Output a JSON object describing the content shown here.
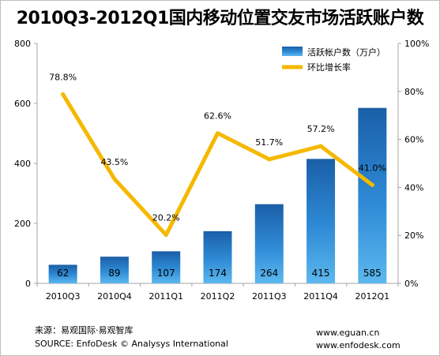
{
  "title": "2010Q3-2012Q1国内移动位置交友市场活跃账户数",
  "chart_data": {
    "type": "bar",
    "categories": [
      "2010Q3",
      "2010Q4",
      "2011Q1",
      "2011Q2",
      "2011Q3",
      "2011Q4",
      "2012Q1"
    ],
    "series": [
      {
        "name": "活跃帐户数（万户）",
        "axis": "left",
        "values": [
          62,
          89,
          107,
          174,
          264,
          415,
          585
        ],
        "data_labels": [
          "62",
          "89",
          "107",
          "174",
          "264",
          "415",
          "585"
        ]
      },
      {
        "name": "环比增长率",
        "type": "line",
        "axis": "right",
        "values": [
          78.8,
          43.5,
          20.2,
          62.6,
          51.7,
          57.2,
          41.0
        ],
        "data_labels": [
          "78.8%",
          "43.5%",
          "20.2%",
          "62.6%",
          "51.7%",
          "57.2%",
          "41.0%"
        ]
      }
    ],
    "y_left": {
      "ylim": [
        0,
        800
      ],
      "ticks": [
        "0",
        "200",
        "400",
        "600",
        "800"
      ]
    },
    "y_right": {
      "ylim": [
        0,
        100
      ],
      "ticks": [
        "0%",
        "20%",
        "40%",
        "60%",
        "80%",
        "100%"
      ]
    },
    "grid": false,
    "legend_position": "top-right",
    "colors": {
      "bar_top": "#1a5fa8",
      "bar_mid": "#2f8bd6",
      "bar_bottom": "#5cb8ee",
      "line": "#f5b800",
      "axis": "#a6a6a6"
    }
  },
  "footer": {
    "source_cn": "来源：易观国际·易观智库",
    "source_en": "SOURCE: EnfoDesk © Analysys International",
    "url1": "www.eguan.cn",
    "url2": "www.enfodesk.com"
  }
}
